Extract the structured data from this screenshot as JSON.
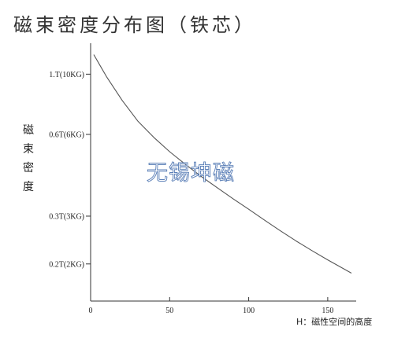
{
  "chart_data": {
    "type": "line",
    "title": "磁束密度分布图（铁芯）",
    "ylabel": "磁束密度",
    "xlabel": "H：磁性空间的高度",
    "xlim": [
      0,
      168
    ],
    "x_ticks": [
      0,
      50,
      100,
      150
    ],
    "y_scale": "log",
    "ylim": [
      0.146,
      1.3
    ],
    "y_ticks": [
      {
        "value": 1.0,
        "label": "1.T(10KG)"
      },
      {
        "value": 0.6,
        "label": "0.6T(6KG)"
      },
      {
        "value": 0.3,
        "label": "0.3T(3KG)"
      },
      {
        "value": 0.2,
        "label": "0.2T(2KG)"
      }
    ],
    "grid": false,
    "series": [
      {
        "x": [
          2,
          10,
          20,
          30,
          40,
          50,
          60,
          70,
          80,
          90,
          100,
          110,
          120,
          130,
          140,
          150,
          160,
          165
        ],
        "y": [
          1.18,
          0.98,
          0.8,
          0.67,
          0.585,
          0.518,
          0.465,
          0.42,
          0.382,
          0.348,
          0.318,
          0.29,
          0.265,
          0.243,
          0.224,
          0.207,
          0.192,
          0.185
        ]
      }
    ],
    "colors": {
      "line": "#555555",
      "axis": "#333333"
    }
  },
  "watermark": "无锡坤磁"
}
